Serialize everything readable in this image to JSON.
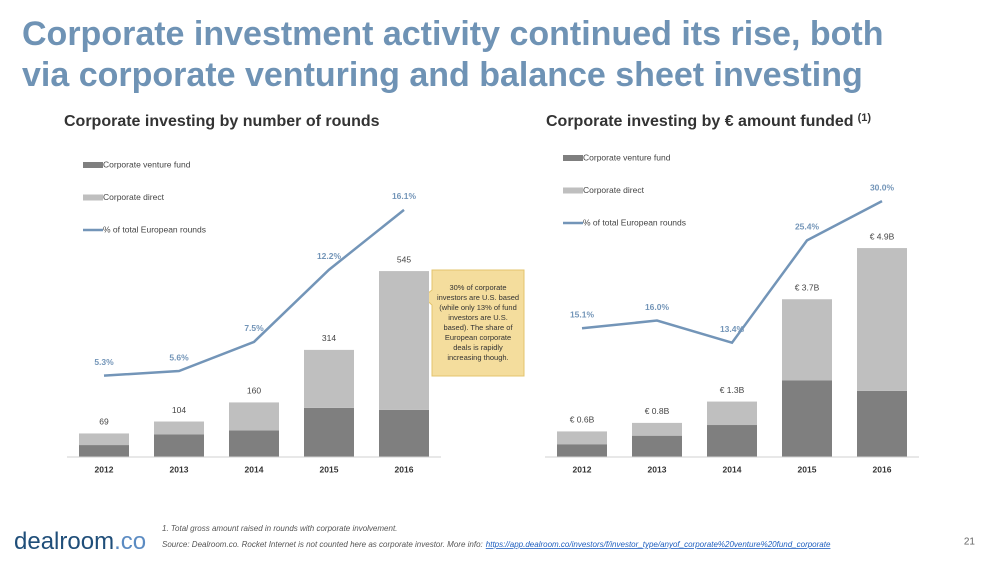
{
  "title_lines": [
    "Corporate investment activity continued its rise, both",
    "via corporate venturing and balance sheet investing"
  ],
  "chart_data": [
    {
      "type": "bar",
      "title": "Corporate investing by number of rounds",
      "categories": [
        "2012",
        "2013",
        "2014",
        "2015",
        "2016"
      ],
      "series": [
        {
          "name": "Corporate venture fund",
          "color": "#7f7f7f",
          "values": [
            35,
            66,
            78,
            144,
            138
          ]
        },
        {
          "name": "Corporate direct",
          "color": "#bfbfbf",
          "values": [
            34,
            38,
            82,
            170,
            407
          ]
        },
        {
          "name": "% of total European rounds",
          "color": "#7395b8",
          "type": "line",
          "axis": "y2",
          "values": [
            5.3,
            5.6,
            7.5,
            12.2,
            16.1
          ],
          "value_labels": [
            "5.3%",
            "5.6%",
            "7.5%",
            "12.2%",
            "16.1%"
          ]
        }
      ],
      "total_labels": [
        "69",
        "104",
        "160",
        "314",
        "545"
      ],
      "ylim": [
        0,
        900
      ],
      "y2lim": [
        0,
        20
      ]
    },
    {
      "type": "bar",
      "title": "Corporate investing by € amount funded",
      "title_note": "(1)",
      "categories": [
        "2012",
        "2013",
        "2014",
        "2015",
        "2016"
      ],
      "series": [
        {
          "name": "Corporate venture fund",
          "color": "#7f7f7f",
          "values": [
            0.3,
            0.5,
            0.75,
            1.8,
            1.55
          ]
        },
        {
          "name": "Corporate direct",
          "color": "#bfbfbf",
          "values": [
            0.3,
            0.3,
            0.55,
            1.9,
            3.35
          ]
        },
        {
          "name": "% of total European rounds",
          "color": "#7395b8",
          "type": "line",
          "axis": "y2",
          "values": [
            15.1,
            16.0,
            13.4,
            25.4,
            30.0
          ],
          "value_labels": [
            "15.1%",
            "16.0%",
            "13.4%",
            "25.4%",
            "30.0%"
          ]
        }
      ],
      "total_labels": [
        "€ 0.6B",
        "€ 0.8B",
        "€ 1.3B",
        "€ 3.7B",
        "€ 4.9B"
      ],
      "ylim": [
        0,
        7.2
      ],
      "y2lim": [
        0,
        36
      ]
    }
  ],
  "callout": [
    "30% of corporate",
    "investors are U.S. based",
    "(while only 13% of fund",
    "investors are U.S.",
    "based). The share of",
    "European corporate",
    "deals is rapidly",
    "increasing though."
  ],
  "footnote": "1. Total gross amount raised in rounds with corporate involvement.",
  "source": "Source: Dealroom.co. Rocket Internet is not counted here as corporate investor. More info:",
  "link": "https://app.dealroom.co/investors/f/investor_type/anyof_corporate%20venture%20fund_corporate",
  "logo": {
    "name": "dealroom",
    "suffix": ".co"
  },
  "page_number": "21"
}
